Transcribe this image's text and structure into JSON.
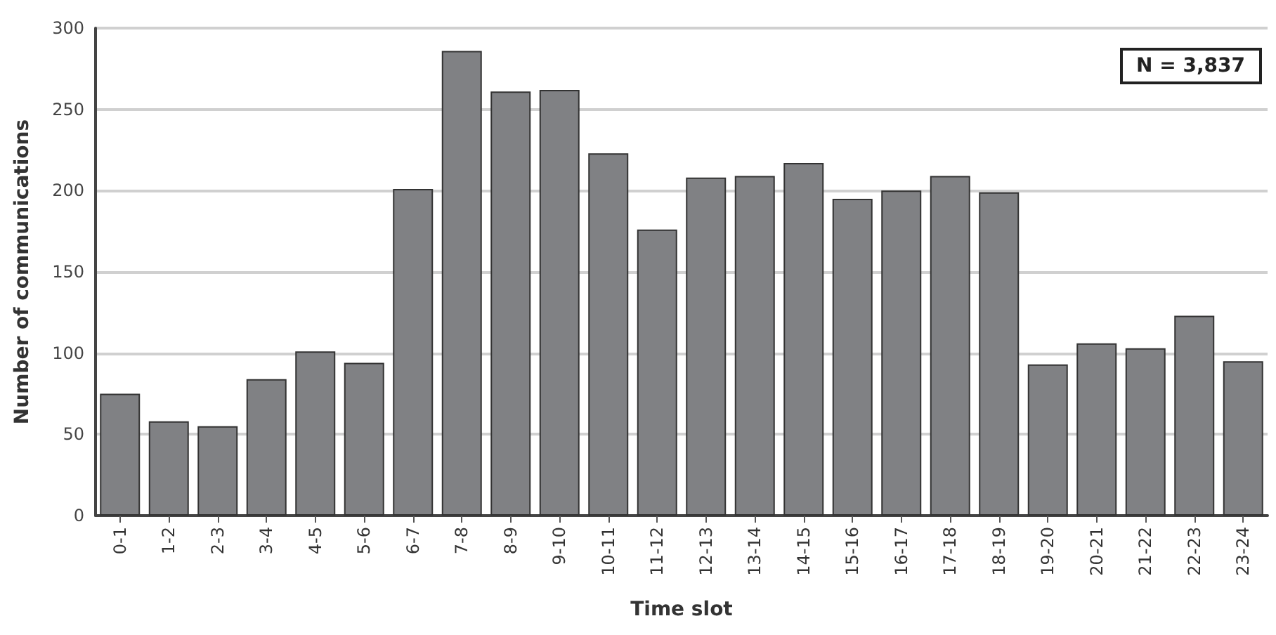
{
  "chart_data": {
    "type": "bar",
    "xlabel": "Time slot",
    "ylabel": "Number of communications",
    "categories": [
      "0-1",
      "1-2",
      "2-3",
      "3-4",
      "4-5",
      "5-6",
      "6-7",
      "7-8",
      "8-9",
      "9-10",
      "10-11",
      "11-12",
      "12-13",
      "13-14",
      "14-15",
      "15-16",
      "16-17",
      "17-18",
      "18-19",
      "19-20",
      "20-21",
      "21-22",
      "22-23",
      "23-24"
    ],
    "values": [
      75,
      58,
      55,
      84,
      101,
      94,
      201,
      286,
      261,
      262,
      223,
      176,
      208,
      209,
      217,
      195,
      200,
      209,
      199,
      93,
      106,
      103,
      123,
      95
    ],
    "color": "#808184",
    "ylim": [
      0,
      300
    ],
    "yticks": [
      0,
      50,
      100,
      150,
      200,
      250,
      300
    ],
    "grid": "y",
    "annotations": [
      "N = 3,837"
    ]
  }
}
